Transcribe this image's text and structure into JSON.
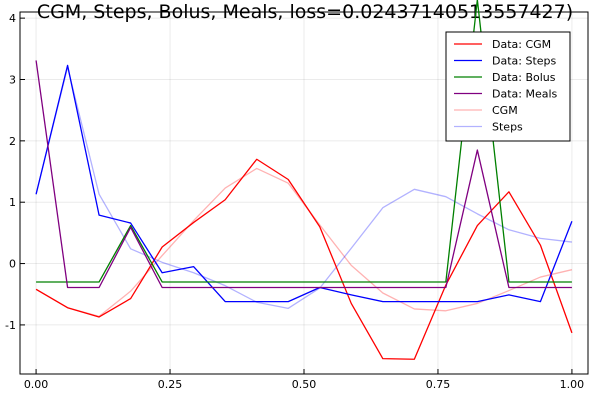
{
  "chart_data": {
    "type": "line",
    "title": "CGM, Steps, Bolus, Meals, loss=0.02437140513557427)",
    "xlabel": "",
    "ylabel": "",
    "xlim": [
      -0.03,
      1.03
    ],
    "ylim": [
      -1.8,
      4.1
    ],
    "xticks": [
      0.0,
      0.25,
      0.5,
      0.75,
      1.0
    ],
    "xtick_labels": [
      "0.00",
      "0.25",
      "0.50",
      "0.75",
      "1.00"
    ],
    "yticks": [
      -1,
      0,
      1,
      2,
      3,
      4
    ],
    "ytick_labels": [
      "-1",
      "0",
      "1",
      "2",
      "3",
      "4"
    ],
    "grid": true,
    "legend_position": "top-right",
    "x": [
      0.0,
      0.0588,
      0.1176,
      0.1765,
      0.2353,
      0.2941,
      0.3529,
      0.4118,
      0.4706,
      0.5294,
      0.5882,
      0.6471,
      0.7059,
      0.7647,
      0.8235,
      0.8824,
      0.9412,
      1.0
    ],
    "series": [
      {
        "name": "Data: CGM",
        "color": "#ff0000",
        "opacity": 1,
        "values": [
          -0.42,
          -0.72,
          -0.87,
          -0.57,
          0.27,
          0.67,
          1.04,
          1.7,
          1.37,
          0.6,
          -0.65,
          -1.55,
          -1.56,
          -0.35,
          0.62,
          1.17,
          0.3,
          -1.13
        ]
      },
      {
        "name": "Data: Steps",
        "color": "#0000ff",
        "opacity": 1,
        "values": [
          1.13,
          3.23,
          0.79,
          0.66,
          -0.15,
          -0.05,
          -0.62,
          -0.62,
          -0.62,
          -0.39,
          -0.51,
          -0.62,
          -0.62,
          -0.62,
          -0.62,
          -0.51,
          -0.62,
          0.69
        ]
      },
      {
        "name": "Data: Bolus",
        "color": "#008000",
        "opacity": 1,
        "values": [
          -0.3,
          -0.3,
          -0.3,
          0.62,
          -0.3,
          -0.3,
          -0.3,
          -0.3,
          -0.3,
          -0.3,
          -0.3,
          -0.3,
          -0.3,
          -0.3,
          4.3,
          -0.3,
          -0.3,
          -0.3
        ]
      },
      {
        "name": "Data: Meals",
        "color": "#800080",
        "opacity": 1,
        "values": [
          3.31,
          -0.39,
          -0.39,
          0.59,
          -0.39,
          -0.39,
          -0.39,
          -0.39,
          -0.39,
          -0.39,
          -0.39,
          -0.39,
          -0.39,
          -0.39,
          1.85,
          -0.39,
          -0.39,
          -0.39
        ]
      },
      {
        "name": "CGM",
        "color": "#ff0000",
        "opacity": 0.3,
        "values": [
          -0.42,
          -0.72,
          -0.86,
          -0.45,
          0.13,
          0.7,
          1.23,
          1.55,
          1.31,
          0.63,
          -0.03,
          -0.48,
          -0.74,
          -0.77,
          -0.65,
          -0.44,
          -0.22,
          -0.1
        ]
      },
      {
        "name": "Steps",
        "color": "#0000ff",
        "opacity": 0.3,
        "values": [
          1.13,
          3.2,
          1.13,
          0.24,
          0.02,
          -0.15,
          -0.36,
          -0.63,
          -0.73,
          -0.4,
          0.25,
          0.91,
          1.21,
          1.09,
          0.81,
          0.55,
          0.41,
          0.35
        ]
      }
    ]
  }
}
